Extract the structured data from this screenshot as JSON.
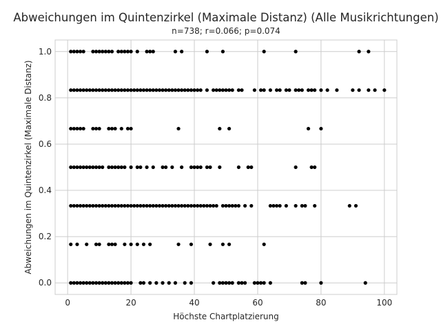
{
  "chart_data": {
    "type": "scatter",
    "title": "Abweichungen im Quintenzirkel (Maximale Distanz) (Alle Musikrichtungen)",
    "subtitle": "n=738; r=0.066; p=0.074",
    "xlabel": "Höchste Chartplatzierung",
    "ylabel": "Abweichungen im Quintenzirkel (Maximale Distanz)",
    "xlim": [
      -3.95,
      103.95
    ],
    "ylim": [
      -0.05,
      1.05
    ],
    "xticks": [
      0,
      20,
      40,
      60,
      80,
      100
    ],
    "yticks": [
      0.0,
      0.2,
      0.4,
      0.6,
      0.8,
      1.0
    ],
    "xtick_labels": [
      "0",
      "20",
      "40",
      "60",
      "80",
      "100"
    ],
    "ytick_labels": [
      "0.0",
      "0.2",
      "0.4",
      "0.6",
      "0.8",
      "1.0"
    ],
    "grid": true,
    "marker_color": "#000000",
    "series": [
      {
        "y": 1.0,
        "x": [
          1,
          2,
          3,
          4,
          5,
          8,
          9,
          10,
          11,
          12,
          13,
          14,
          16,
          17,
          18,
          19,
          20,
          22,
          25,
          26,
          27,
          34,
          36,
          44,
          49,
          62,
          72,
          92,
          95
        ]
      },
      {
        "y": 0.8333,
        "x": [
          1,
          2,
          3,
          4,
          5,
          6,
          7,
          8,
          9,
          10,
          11,
          12,
          13,
          14,
          15,
          16,
          17,
          18,
          19,
          20,
          21,
          22,
          23,
          24,
          25,
          26,
          27,
          28,
          29,
          30,
          31,
          32,
          33,
          34,
          35,
          36,
          37,
          38,
          39,
          40,
          41,
          42,
          44,
          46,
          47,
          48,
          49,
          50,
          51,
          52,
          54,
          55,
          59,
          61,
          62,
          64,
          66,
          67,
          69,
          70,
          72,
          73,
          74,
          76,
          77,
          78,
          80,
          82,
          85,
          90,
          92,
          95,
          97,
          100
        ]
      },
      {
        "y": 0.6667,
        "x": [
          1,
          2,
          3,
          4,
          5,
          8,
          9,
          10,
          13,
          14,
          15,
          17,
          19,
          20,
          35,
          48,
          51,
          76,
          80
        ]
      },
      {
        "y": 0.5,
        "x": [
          1,
          2,
          3,
          4,
          5,
          6,
          7,
          8,
          9,
          10,
          11,
          13,
          14,
          15,
          16,
          17,
          18,
          20,
          22,
          23,
          25,
          27,
          30,
          31,
          33,
          36,
          39,
          40,
          41,
          42,
          44,
          45,
          48,
          54,
          57,
          58,
          72,
          77,
          78
        ]
      },
      {
        "y": 0.3333,
        "x": [
          1,
          2,
          3,
          4,
          5,
          6,
          7,
          8,
          9,
          10,
          11,
          12,
          13,
          14,
          15,
          16,
          17,
          18,
          19,
          20,
          21,
          22,
          23,
          24,
          25,
          26,
          27,
          28,
          29,
          30,
          31,
          32,
          33,
          34,
          35,
          36,
          37,
          38,
          39,
          40,
          41,
          42,
          43,
          44,
          45,
          46,
          47,
          49,
          50,
          51,
          52,
          53,
          54,
          56,
          58,
          64,
          65,
          66,
          67,
          69,
          72,
          74,
          75,
          78,
          89,
          91
        ]
      },
      {
        "y": 0.1667,
        "x": [
          1,
          3,
          6,
          9,
          10,
          13,
          14,
          15,
          18,
          20,
          22,
          24,
          26,
          35,
          39,
          45,
          49,
          51,
          62
        ]
      },
      {
        "y": 0.0,
        "x": [
          1,
          2,
          3,
          4,
          5,
          6,
          7,
          8,
          9,
          10,
          11,
          12,
          13,
          14,
          15,
          16,
          17,
          18,
          19,
          20,
          23,
          24,
          26,
          28,
          30,
          32,
          34,
          37,
          39,
          46,
          48,
          49,
          50,
          51,
          52,
          54,
          55,
          56,
          59,
          60,
          61,
          62,
          64,
          74,
          75,
          80,
          94
        ]
      }
    ]
  }
}
